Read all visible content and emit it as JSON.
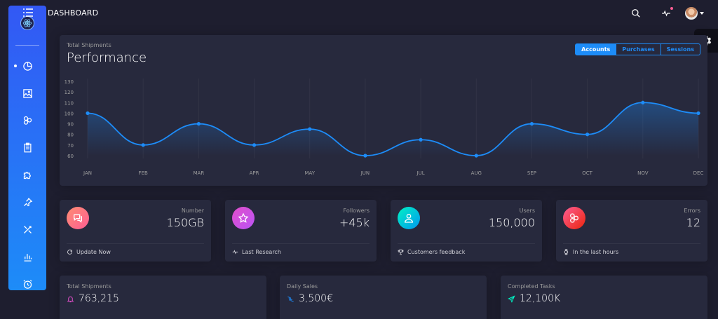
{
  "header": {
    "title": "DASHBOARD"
  },
  "sidebar": {
    "items": [
      {
        "icon": "chart-pie-icon",
        "active": true
      },
      {
        "icon": "image-icon",
        "active": false
      },
      {
        "icon": "atom-icon",
        "active": false
      },
      {
        "icon": "clipboard-icon",
        "active": false
      },
      {
        "icon": "puzzle-icon",
        "active": false
      },
      {
        "icon": "pin-icon",
        "active": false
      },
      {
        "icon": "tools-icon",
        "active": false
      },
      {
        "icon": "bar-chart-icon",
        "active": false
      },
      {
        "icon": "alarm-clock-icon",
        "active": false
      }
    ]
  },
  "performance": {
    "category": "Total Shipments",
    "title": "Performance",
    "tabs": [
      "Accounts",
      "Purchases",
      "Sessions"
    ],
    "active_tab": "Accounts"
  },
  "chart_data": {
    "type": "area",
    "title": "Performance",
    "categories": [
      "JAN",
      "FEB",
      "MAR",
      "APR",
      "MAY",
      "JUN",
      "JUL",
      "AUG",
      "SEP",
      "OCT",
      "NOV",
      "DEC"
    ],
    "series": [
      {
        "values": [
          100,
          70,
          90,
          70,
          85,
          60,
          75,
          60,
          90,
          80,
          110,
          100
        ]
      }
    ],
    "yticks": [
      60,
      70,
      80,
      90,
      100,
      110,
      120,
      130
    ],
    "ylim": [
      60,
      130
    ],
    "color": "#1d8cf8",
    "grid": true
  },
  "stats": [
    {
      "label": "Number",
      "value": "150GB",
      "footer": "Update Now",
      "icon": "chat-icon",
      "footer_icon": "refresh-icon",
      "color": "#fd5d93",
      "color2": "#ff8d72"
    },
    {
      "label": "Followers",
      "value": "+45k",
      "footer": "Last Research",
      "icon": "star-icon",
      "footer_icon": "pulse-icon",
      "color": "#ba54f5",
      "color2": "#e14eca"
    },
    {
      "label": "Users",
      "value": "150,000",
      "footer": "Customers feedback",
      "icon": "user-icon",
      "footer_icon": "trophy-icon",
      "color": "#00f2c3",
      "color2": "#0098f0"
    },
    {
      "label": "Errors",
      "value": "12",
      "footer": "In the last hours",
      "icon": "molecule-icon",
      "footer_icon": "watch-icon",
      "color": "#fd5d93",
      "color2": "#ec250d"
    }
  ],
  "bottom_cards": [
    {
      "category": "Total Shipments",
      "value": "763,215",
      "icon": "bell-icon",
      "icon_color": "#e14eca"
    },
    {
      "category": "Daily Sales",
      "value": "3,500€",
      "icon": "delivery-icon",
      "icon_color": "#1d8cf8"
    },
    {
      "category": "Completed Tasks",
      "value": "12,100K",
      "icon": "send-icon",
      "icon_color": "#00f2c3"
    }
  ]
}
